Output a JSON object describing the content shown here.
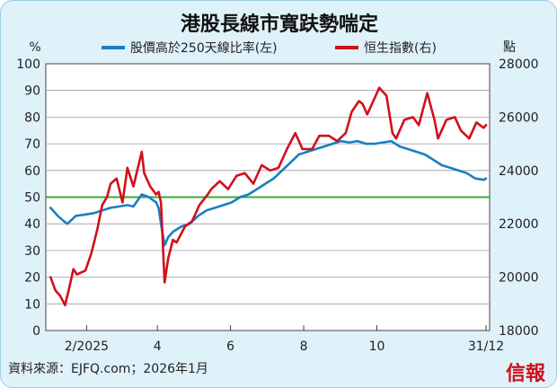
{
  "chart_data": {
    "type": "line",
    "title": "港股長線市寬趺勢喘定",
    "left_axis": {
      "unit": "%",
      "ylim": [
        0,
        100
      ],
      "ticks": [
        0,
        10,
        20,
        30,
        40,
        50,
        60,
        70,
        80,
        90,
        100
      ]
    },
    "right_axis": {
      "unit": "點",
      "ylim": [
        18000,
        28000
      ],
      "ticks": [
        18000,
        20000,
        22000,
        24000,
        26000,
        28000
      ]
    },
    "x_axis": {
      "range": [
        "2025-01-01",
        "2025-12-31"
      ],
      "ticks": [
        {
          "date": "2025-02-01",
          "label": "2/2025"
        },
        {
          "date": "2025-04-01",
          "label": "4"
        },
        {
          "date": "2025-06-01",
          "label": "6"
        },
        {
          "date": "2025-08-01",
          "label": "8"
        },
        {
          "date": "2025-10-01",
          "label": "10"
        },
        {
          "date": "2025-12-31",
          "label": "31/12"
        }
      ]
    },
    "reference_line": {
      "axis": "left",
      "value": 50,
      "color": "#3aaa35"
    },
    "grid": true,
    "legend_position": "top",
    "series": [
      {
        "name": "股價高於250天線比率(左)",
        "axis": "left",
        "color": "#1a7fc1",
        "points": [
          [
            "2025-01-02",
            46
          ],
          [
            "2025-01-08",
            43
          ],
          [
            "2025-01-13",
            41
          ],
          [
            "2025-01-16",
            40
          ],
          [
            "2025-01-23",
            43
          ],
          [
            "2025-01-31",
            43.5
          ],
          [
            "2025-02-07",
            44
          ],
          [
            "2025-02-14",
            45
          ],
          [
            "2025-02-21",
            46
          ],
          [
            "2025-02-28",
            46.5
          ],
          [
            "2025-03-07",
            47
          ],
          [
            "2025-03-12",
            46.5
          ],
          [
            "2025-03-19",
            51
          ],
          [
            "2025-03-25",
            50
          ],
          [
            "2025-03-31",
            48
          ],
          [
            "2025-04-02",
            46
          ],
          [
            "2025-04-04",
            40
          ],
          [
            "2025-04-07",
            32
          ],
          [
            "2025-04-10",
            35
          ],
          [
            "2025-04-14",
            37
          ],
          [
            "2025-04-21",
            39
          ],
          [
            "2025-04-28",
            40
          ],
          [
            "2025-05-05",
            43
          ],
          [
            "2025-05-12",
            45
          ],
          [
            "2025-05-19",
            46
          ],
          [
            "2025-05-26",
            47
          ],
          [
            "2025-06-02",
            48
          ],
          [
            "2025-06-09",
            50
          ],
          [
            "2025-06-16",
            51
          ],
          [
            "2025-06-23",
            53
          ],
          [
            "2025-06-30",
            55
          ],
          [
            "2025-07-07",
            57
          ],
          [
            "2025-07-14",
            60
          ],
          [
            "2025-07-21",
            63
          ],
          [
            "2025-07-28",
            66
          ],
          [
            "2025-08-04",
            67
          ],
          [
            "2025-08-11",
            68
          ],
          [
            "2025-08-18",
            69
          ],
          [
            "2025-08-25",
            70
          ],
          [
            "2025-09-01",
            71
          ],
          [
            "2025-09-08",
            70.5
          ],
          [
            "2025-09-15",
            71
          ],
          [
            "2025-09-22",
            70
          ],
          [
            "2025-09-29",
            70
          ],
          [
            "2025-10-06",
            70.5
          ],
          [
            "2025-10-13",
            71
          ],
          [
            "2025-10-20",
            69
          ],
          [
            "2025-10-27",
            68
          ],
          [
            "2025-11-03",
            67
          ],
          [
            "2025-11-10",
            66
          ],
          [
            "2025-11-17",
            64
          ],
          [
            "2025-11-24",
            62
          ],
          [
            "2025-12-01",
            61
          ],
          [
            "2025-12-08",
            60
          ],
          [
            "2025-12-15",
            59
          ],
          [
            "2025-12-22",
            57
          ],
          [
            "2025-12-29",
            56.5
          ],
          [
            "2025-12-31",
            57
          ]
        ]
      },
      {
        "name": "恒生指數(右)",
        "axis": "right",
        "color": "#d0101b",
        "points": [
          [
            "2025-01-02",
            20000
          ],
          [
            "2025-01-06",
            19500
          ],
          [
            "2025-01-10",
            19300
          ],
          [
            "2025-01-14",
            18950
          ],
          [
            "2025-01-17",
            19500
          ],
          [
            "2025-01-21",
            20300
          ],
          [
            "2025-01-24",
            20100
          ],
          [
            "2025-01-31",
            20250
          ],
          [
            "2025-02-05",
            20900
          ],
          [
            "2025-02-10",
            21800
          ],
          [
            "2025-02-14",
            22700
          ],
          [
            "2025-02-18",
            23000
          ],
          [
            "2025-02-21",
            23500
          ],
          [
            "2025-02-26",
            23700
          ],
          [
            "2025-03-03",
            22800
          ],
          [
            "2025-03-07",
            24100
          ],
          [
            "2025-03-12",
            23400
          ],
          [
            "2025-03-19",
            24700
          ],
          [
            "2025-03-21",
            23900
          ],
          [
            "2025-03-26",
            23400
          ],
          [
            "2025-03-31",
            23100
          ],
          [
            "2025-04-02",
            23200
          ],
          [
            "2025-04-04",
            22800
          ],
          [
            "2025-04-07",
            19800
          ],
          [
            "2025-04-10",
            20700
          ],
          [
            "2025-04-14",
            21400
          ],
          [
            "2025-04-17",
            21300
          ],
          [
            "2025-04-24",
            21900
          ],
          [
            "2025-04-30",
            22100
          ],
          [
            "2025-05-06",
            22700
          ],
          [
            "2025-05-13",
            23100
          ],
          [
            "2025-05-16",
            23300
          ],
          [
            "2025-05-23",
            23600
          ],
          [
            "2025-05-30",
            23300
          ],
          [
            "2025-06-06",
            23800
          ],
          [
            "2025-06-13",
            23900
          ],
          [
            "2025-06-20",
            23500
          ],
          [
            "2025-06-27",
            24200
          ],
          [
            "2025-07-04",
            24000
          ],
          [
            "2025-07-11",
            24100
          ],
          [
            "2025-07-18",
            24800
          ],
          [
            "2025-07-25",
            25400
          ],
          [
            "2025-07-31",
            24800
          ],
          [
            "2025-08-08",
            24800
          ],
          [
            "2025-08-14",
            25300
          ],
          [
            "2025-08-22",
            25300
          ],
          [
            "2025-08-29",
            25100
          ],
          [
            "2025-09-05",
            25400
          ],
          [
            "2025-09-10",
            26200
          ],
          [
            "2025-09-16",
            26600
          ],
          [
            "2025-09-19",
            26500
          ],
          [
            "2025-09-23",
            26100
          ],
          [
            "2025-09-30",
            26800
          ],
          [
            "2025-10-03",
            27100
          ],
          [
            "2025-10-09",
            26800
          ],
          [
            "2025-10-14",
            25400
          ],
          [
            "2025-10-17",
            25200
          ],
          [
            "2025-10-24",
            25900
          ],
          [
            "2025-10-31",
            26000
          ],
          [
            "2025-11-05",
            25700
          ],
          [
            "2025-11-12",
            26900
          ],
          [
            "2025-11-18",
            25900
          ],
          [
            "2025-11-21",
            25200
          ],
          [
            "2025-11-28",
            25900
          ],
          [
            "2025-12-05",
            26000
          ],
          [
            "2025-12-10",
            25500
          ],
          [
            "2025-12-17",
            25200
          ],
          [
            "2025-12-23",
            25800
          ],
          [
            "2025-12-29",
            25600
          ],
          [
            "2025-12-31",
            25700
          ]
        ]
      }
    ],
    "source": "資料來源：EJFQ.com；2026年1月",
    "brand": "信報"
  }
}
